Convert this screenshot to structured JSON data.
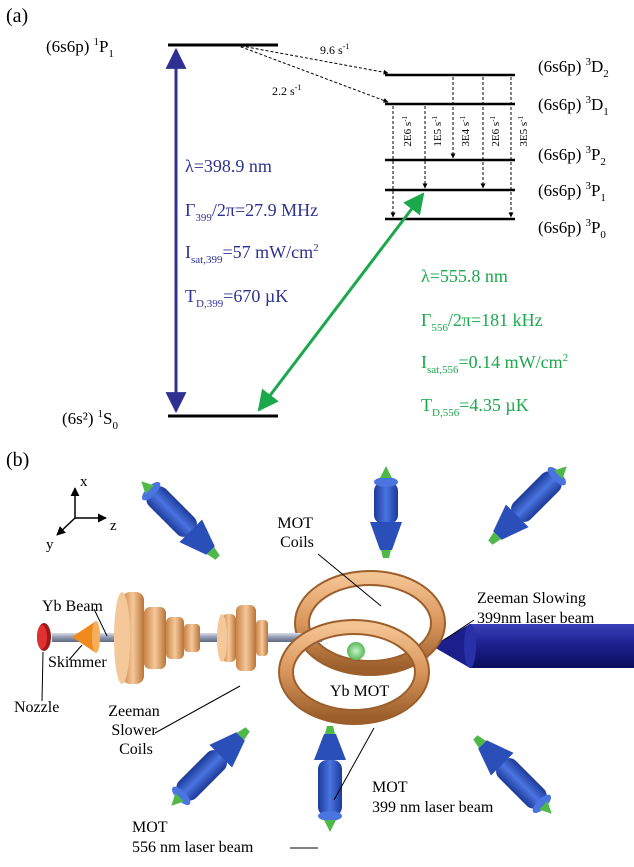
{
  "panel_a": {
    "label": "(a)",
    "levels": {
      "p1_1": {
        "config": "(6s6p)",
        "sup": "1",
        "term": "P",
        "sub": "1"
      },
      "s0_1": {
        "config": "(6s²)",
        "sup": "1",
        "term": "S",
        "sub": "0"
      },
      "d2_3": {
        "config": "(6s6p)",
        "sup": "3",
        "term": "D",
        "sub": "2"
      },
      "d1_3": {
        "config": "(6s6p)",
        "sup": "3",
        "term": "D",
        "sub": "1"
      },
      "p2_3": {
        "config": "(6s6p)",
        "sup": "3",
        "term": "P",
        "sub": "2"
      },
      "p1_3": {
        "config": "(6s6p)",
        "sup": "3",
        "term": "P",
        "sub": "1"
      },
      "p0_3": {
        "config": "(6s6p)",
        "sup": "3",
        "term": "P",
        "sub": "0"
      }
    },
    "rates": {
      "to_d2": {
        "value": "9.6 s",
        "exp": "-1"
      },
      "to_d1": {
        "value": "2.2 s",
        "exp": "-1"
      },
      "cascade": [
        {
          "value": "2E6 s",
          "exp": "-1"
        },
        {
          "value": "1E5 s",
          "exp": "-1"
        },
        {
          "value": "3E4 s",
          "exp": "-1"
        },
        {
          "value": "2E6 s",
          "exp": "-1"
        },
        {
          "value": "3E5 s",
          "exp": "-1"
        }
      ]
    },
    "blue_transition": {
      "color": "#2e3192",
      "lambda": "λ=398.9 nm",
      "gamma_main": "Γ",
      "gamma_sub": "399",
      "gamma_rest": "/2π=27.9 MHz",
      "isat_main": "I",
      "isat_sub": "sat,399",
      "isat_rest": "=57 mW/cm",
      "isat_sup": "2",
      "td_main": "T",
      "td_sub": "D,399",
      "td_rest": "=670 µK"
    },
    "green_transition": {
      "color": "#1aa84a",
      "lambda": "λ=555.8 nm",
      "gamma_main": "Γ",
      "gamma_sub": "556",
      "gamma_rest": "/2π=181 kHz",
      "isat_main": "I",
      "isat_sub": "sat,556",
      "isat_rest": "=0.14 mW/cm",
      "isat_sup": "2",
      "td_main": "T",
      "td_sub": "D,556",
      "td_rest": "=4.35 µK"
    }
  },
  "panel_b": {
    "label": "(b)",
    "axes": {
      "x": "x",
      "y": "y",
      "z": "z"
    },
    "labels": {
      "mot_coils_1": "MOT",
      "mot_coils_2": "Coils",
      "yb_beam": "Yb Beam",
      "skimmer": "Skimmer",
      "nozzle": "Nozzle",
      "zeeman_coils_1": "Zeeman",
      "zeeman_coils_2": "Slower",
      "zeeman_coils_3": "Coils",
      "yb_mot": "Yb MOT",
      "zeeman_slowing_1": "Zeeman Slowing",
      "zeeman_slowing_2": "399nm laser beam",
      "mot399_1": "MOT",
      "mot399_2": "399 nm laser beam",
      "mot556_1": "MOT",
      "mot556_2": "556 nm laser beam"
    },
    "colors": {
      "coil": "#d9955a",
      "laser": "#2a4fb8",
      "tip": "#4fb848",
      "nozzle": "#cc2020",
      "skimmer": "#f08a1c",
      "atoms": "#7fd27f",
      "slowing_beam": "#1a1f8c"
    }
  }
}
